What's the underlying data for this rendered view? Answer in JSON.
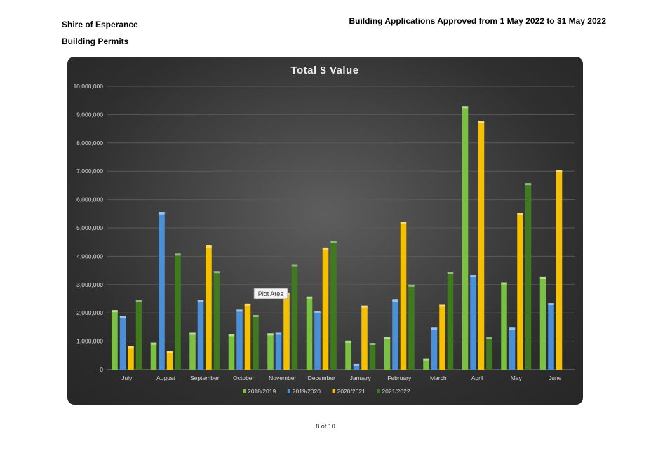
{
  "header": {
    "org": "Shire of Esperance",
    "section": "Building Permits",
    "report_title": "Building Applications Approved from 1 May 2022 to 31 May 2022"
  },
  "footer": {
    "page": "8 of 10"
  },
  "tooltip": {
    "label": "Plot Area"
  },
  "colors": {
    "s2018": "#7ac143",
    "s2019": "#4a90d9",
    "s2020": "#f5c000",
    "s2021": "#3f7a1f",
    "grid": "#5a5a5a",
    "text": "#d8d8d8"
  },
  "chart_data": {
    "type": "bar",
    "title": "Total $ Value",
    "xlabel": "",
    "ylabel": "",
    "ylim": [
      0,
      10000000
    ],
    "yticks": [
      "0",
      "1,000,000",
      "2,000,000",
      "3,000,000",
      "4,000,000",
      "5,000,000",
      "6,000,000",
      "7,000,000",
      "8,000,000",
      "9,000,000",
      "10,000,000"
    ],
    "legend": "bottom",
    "grid": true,
    "categories": [
      "July",
      "August",
      "September",
      "October",
      "November",
      "December",
      "January",
      "February",
      "March",
      "April",
      "May",
      "June"
    ],
    "series": [
      {
        "name": "2018/2019",
        "color": "#7ac143",
        "values": [
          2100000,
          950000,
          1300000,
          1250000,
          1280000,
          2580000,
          1020000,
          1150000,
          380000,
          9300000,
          3080000,
          3270000
        ]
      },
      {
        "name": "2019/2020",
        "color": "#4a90d9",
        "values": [
          1900000,
          5550000,
          2450000,
          2120000,
          1300000,
          2060000,
          200000,
          2470000,
          1480000,
          3340000,
          1480000,
          2350000
        ]
      },
      {
        "name": "2020/2021",
        "color": "#f5c000",
        "values": [
          830000,
          650000,
          4380000,
          2330000,
          2700000,
          4310000,
          2260000,
          5220000,
          2290000,
          8780000,
          5520000,
          7040000
        ]
      },
      {
        "name": "2021/2022",
        "color": "#3f7a1f",
        "values": [
          2450000,
          4100000,
          3460000,
          1930000,
          3700000,
          4550000,
          940000,
          3000000,
          3440000,
          1150000,
          6580000,
          null
        ]
      }
    ]
  }
}
